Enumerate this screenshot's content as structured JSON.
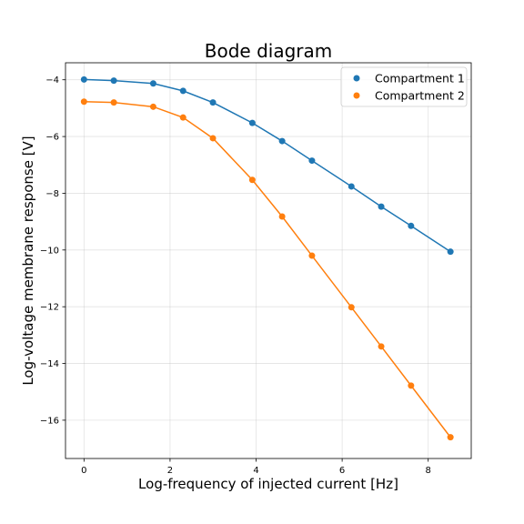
{
  "chart_data": {
    "type": "line",
    "title": "Bode diagram",
    "xlabel": "Log-frequency of injected current [Hz]",
    "ylabel": "Log-voltage membrane response [V]",
    "xlim": [
      -0.43,
      9.0
    ],
    "ylim": [
      -17.35,
      -3.4
    ],
    "xticks": [
      0,
      2,
      4,
      6,
      8
    ],
    "yticks": [
      -16,
      -14,
      -12,
      -10,
      -8,
      -6,
      -4
    ],
    "grid": true,
    "legend_position": "top-right",
    "x": [
      0.0,
      0.693,
      1.609,
      2.303,
      2.996,
      3.912,
      4.605,
      5.298,
      6.215,
      6.908,
      7.601,
      8.517
    ],
    "series": [
      {
        "name": "Compartment 1",
        "color": "#1f77b4",
        "values": [
          -3.99,
          -4.03,
          -4.13,
          -4.39,
          -4.8,
          -5.52,
          -6.16,
          -6.85,
          -7.76,
          -8.47,
          -9.15,
          -10.06
        ]
      },
      {
        "name": "Compartment 2",
        "color": "#ff7f0e",
        "values": [
          -4.77,
          -4.8,
          -4.95,
          -5.33,
          -6.06,
          -7.53,
          -8.82,
          -10.2,
          -12.02,
          -13.4,
          -14.78,
          -16.6
        ]
      }
    ]
  }
}
